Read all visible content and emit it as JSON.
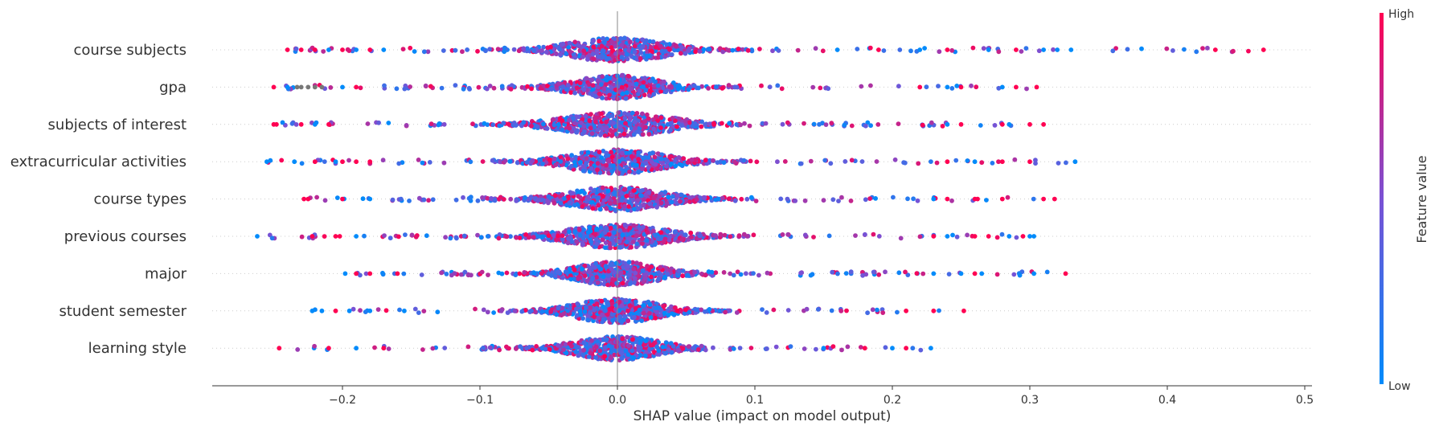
{
  "chart_data": {
    "type": "scatter",
    "subtype": "shap-beeswarm",
    "xlabel": "SHAP value (impact on model output)",
    "xlim": [
      -0.3,
      0.51
    ],
    "xticks": [
      {
        "value": -0.2,
        "label": "−0.2"
      },
      {
        "value": -0.1,
        "label": "−0.1"
      },
      {
        "value": 0.0,
        "label": "0.0"
      },
      {
        "value": 0.1,
        "label": "0.1"
      },
      {
        "value": 0.2,
        "label": "0.2"
      },
      {
        "value": 0.3,
        "label": "0.3"
      },
      {
        "value": 0.4,
        "label": "0.4"
      },
      {
        "value": 0.5,
        "label": "0.5"
      }
    ],
    "features": [
      {
        "name": "course subjects",
        "min": -0.24,
        "max": 0.47,
        "core_spread": 0.08,
        "outliers": [
          [
            -0.24,
            1
          ],
          [
            -0.23,
            1
          ],
          [
            -0.22,
            1
          ],
          [
            -0.21,
            0
          ],
          [
            -0.2,
            1
          ],
          [
            -0.19,
            0
          ],
          [
            -0.18,
            1
          ],
          [
            -0.17,
            0
          ],
          [
            0.16,
            0
          ],
          [
            0.19,
            1
          ],
          [
            0.22,
            0
          ],
          [
            0.24,
            1
          ],
          [
            0.27,
            0
          ],
          [
            0.29,
            1
          ],
          [
            0.31,
            0
          ],
          [
            0.32,
            0
          ],
          [
            0.33,
            0
          ],
          [
            0.435,
            1
          ],
          [
            0.47,
            1
          ]
        ]
      },
      {
        "name": "gpa",
        "min": -0.25,
        "max": 0.305,
        "core_spread": 0.07,
        "outliers": [
          [
            -0.25,
            1
          ],
          [
            -0.24,
            0
          ],
          [
            -0.233,
            -1
          ],
          [
            -0.23,
            -1
          ],
          [
            -0.225,
            -1
          ],
          [
            -0.22,
            -1
          ],
          [
            -0.215,
            -1
          ],
          [
            -0.2,
            0
          ],
          [
            -0.19,
            1
          ],
          [
            0.22,
            1
          ],
          [
            0.24,
            0
          ],
          [
            0.25,
            1
          ],
          [
            0.28,
            0
          ],
          [
            0.29,
            1
          ],
          [
            0.305,
            1
          ]
        ]
      },
      {
        "name": "subjects of interest",
        "min": -0.25,
        "max": 0.315,
        "core_spread": 0.09,
        "outliers": [
          [
            -0.25,
            1
          ],
          [
            -0.248,
            1
          ],
          [
            -0.23,
            1
          ],
          [
            -0.22,
            0
          ],
          [
            -0.21,
            1
          ],
          [
            0.24,
            0
          ],
          [
            0.25,
            1
          ],
          [
            0.28,
            1
          ],
          [
            0.285,
            0
          ],
          [
            0.3,
            1
          ],
          [
            0.31,
            1
          ]
        ]
      },
      {
        "name": "extracurricular activities",
        "min": -0.255,
        "max": 0.333,
        "core_spread": 0.08,
        "outliers": [
          [
            -0.255,
            0
          ],
          [
            -0.235,
            0
          ],
          [
            -0.22,
            1
          ],
          [
            -0.205,
            0
          ],
          [
            -0.2,
            1
          ],
          [
            -0.19,
            1
          ],
          [
            -0.18,
            1
          ],
          [
            0.24,
            1
          ],
          [
            0.26,
            0
          ],
          [
            0.28,
            1
          ],
          [
            0.3,
            1
          ],
          [
            0.333,
            0
          ]
        ]
      },
      {
        "name": "course types",
        "min": -0.228,
        "max": 0.318,
        "core_spread": 0.08,
        "outliers": [
          [
            -0.228,
            1
          ],
          [
            -0.225,
            1
          ],
          [
            -0.2,
            1
          ],
          [
            -0.18,
            0
          ],
          [
            0.23,
            0
          ],
          [
            0.24,
            1
          ],
          [
            0.26,
            1
          ],
          [
            0.262,
            1
          ],
          [
            0.28,
            1
          ],
          [
            0.31,
            1
          ],
          [
            0.318,
            1
          ]
        ]
      },
      {
        "name": "previous courses",
        "min": -0.262,
        "max": 0.303,
        "core_spread": 0.08,
        "outliers": [
          [
            -0.262,
            0
          ],
          [
            -0.222,
            1
          ],
          [
            -0.205,
            1
          ],
          [
            -0.202,
            1
          ],
          [
            -0.19,
            0
          ],
          [
            0.23,
            1
          ],
          [
            0.24,
            0
          ],
          [
            0.26,
            1
          ],
          [
            0.27,
            1
          ],
          [
            0.285,
            0
          ],
          [
            0.295,
            1
          ],
          [
            0.3,
            0
          ],
          [
            0.303,
            0
          ]
        ]
      },
      {
        "name": "major",
        "min": -0.198,
        "max": 0.326,
        "core_spread": 0.07,
        "outliers": [
          [
            -0.198,
            0
          ],
          [
            -0.19,
            1
          ],
          [
            -0.18,
            1
          ],
          [
            -0.16,
            1
          ],
          [
            0.23,
            0
          ],
          [
            0.25,
            0
          ],
          [
            0.26,
            1
          ],
          [
            0.265,
            0
          ],
          [
            0.303,
            0
          ],
          [
            0.326,
            1
          ]
        ]
      },
      {
        "name": "student semester",
        "min": -0.222,
        "max": 0.252,
        "core_spread": 0.07,
        "outliers": [
          [
            -0.222,
            0
          ],
          [
            -0.215,
            0
          ],
          [
            -0.205,
            1
          ],
          [
            -0.195,
            0
          ],
          [
            -0.18,
            0
          ],
          [
            -0.155,
            0
          ],
          [
            0.21,
            1
          ],
          [
            0.23,
            1
          ],
          [
            0.252,
            1
          ]
        ]
      },
      {
        "name": "learning style",
        "min": -0.246,
        "max": 0.228,
        "core_spread": 0.07,
        "outliers": [
          [
            -0.246,
            1
          ],
          [
            -0.21,
            1
          ],
          [
            -0.19,
            0
          ],
          [
            -0.17,
            1
          ],
          [
            0.15,
            0
          ],
          [
            0.18,
            1
          ],
          [
            0.2,
            0
          ],
          [
            0.21,
            1
          ],
          [
            0.228,
            0
          ]
        ]
      }
    ],
    "colorbar": {
      "label": "Feature value",
      "high_label": "High",
      "low_label": "Low",
      "high_color": "#ff0052",
      "low_color": "#008bfb",
      "missing_color": "#777777"
    },
    "grid": false,
    "legend": "colorbar-right"
  }
}
